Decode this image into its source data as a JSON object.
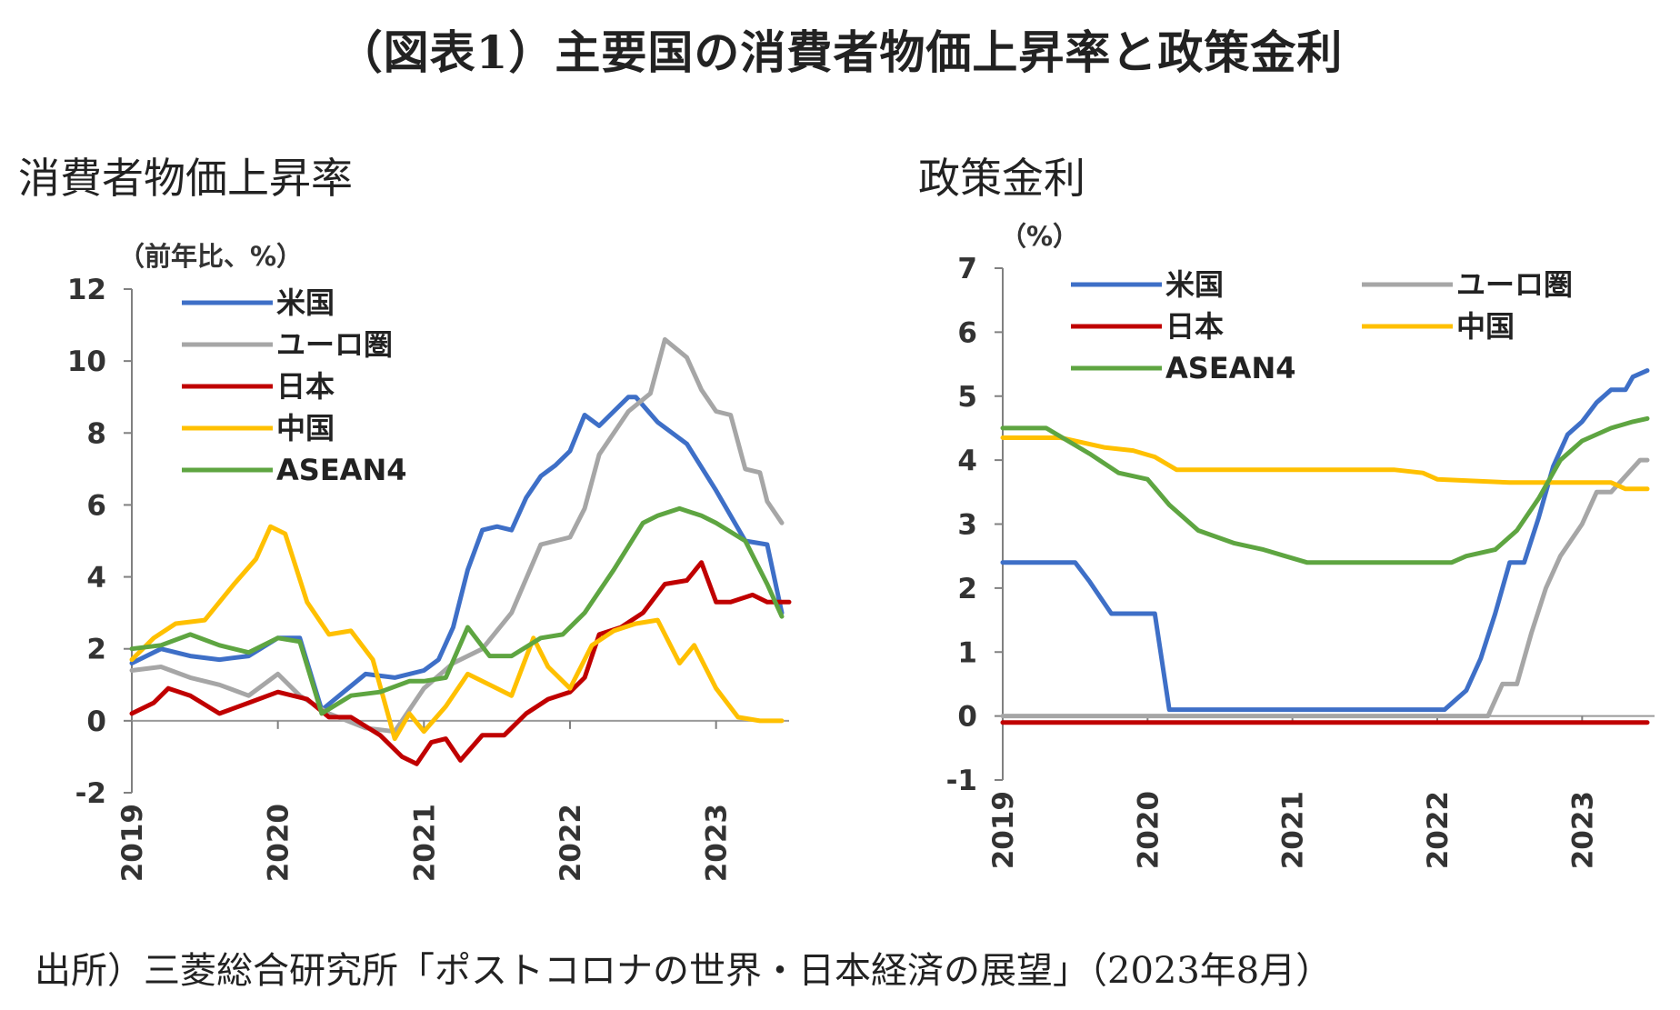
{
  "title": "（図表1）主要国の消費者物価上昇率と政策金利",
  "source": "出所）三菱総合研究所「ポストコロナの世界・日本経済の展望」（2023年8月）",
  "colors": {
    "us": "#3e6fc7",
    "euro": "#a6a6a6",
    "japan": "#c00000",
    "china": "#ffc000",
    "asean": "#5ea541"
  },
  "chart_data": [
    {
      "type": "line",
      "title": "消費者物価上昇率",
      "unit_label": "（前年比、%）",
      "ylim": [
        -2,
        12
      ],
      "yticks": [
        -2,
        0,
        2,
        4,
        6,
        8,
        10,
        12
      ],
      "xlim": [
        2019.0,
        2023.5
      ],
      "xticks": [
        "2019",
        "2020",
        "2021",
        "2022",
        "2023"
      ],
      "grid": false,
      "legend_position": "top-left",
      "series": [
        {
          "name": "米国",
          "key": "us",
          "x": [
            2019.0,
            2019.2,
            2019.4,
            2019.6,
            2019.8,
            2020.0,
            2020.15,
            2020.3,
            2020.45,
            2020.6,
            2020.8,
            2021.0,
            2021.1,
            2021.2,
            2021.3,
            2021.4,
            2021.5,
            2021.6,
            2021.7,
            2021.8,
            2021.9,
            2022.0,
            2022.1,
            2022.2,
            2022.3,
            2022.4,
            2022.45,
            2022.6,
            2022.8,
            2023.0,
            2023.2,
            2023.35,
            2023.45
          ],
          "y": [
            1.6,
            2.0,
            1.8,
            1.7,
            1.8,
            2.3,
            2.3,
            0.3,
            0.8,
            1.3,
            1.2,
            1.4,
            1.7,
            2.6,
            4.2,
            5.3,
            5.4,
            5.3,
            6.2,
            6.8,
            7.1,
            7.5,
            8.5,
            8.2,
            8.6,
            9.0,
            9.0,
            8.3,
            7.7,
            6.4,
            5.0,
            4.9,
            3.0
          ]
        },
        {
          "name": "ユーロ圏",
          "key": "euro",
          "x": [
            2019.0,
            2019.2,
            2019.4,
            2019.6,
            2019.8,
            2020.0,
            2020.15,
            2020.35,
            2020.6,
            2020.8,
            2021.0,
            2021.2,
            2021.4,
            2021.6,
            2021.8,
            2021.9,
            2022.0,
            2022.1,
            2022.2,
            2022.4,
            2022.55,
            2022.65,
            2022.8,
            2022.9,
            2023.0,
            2023.1,
            2023.2,
            2023.3,
            2023.35,
            2023.45
          ],
          "y": [
            1.4,
            1.5,
            1.2,
            1.0,
            0.7,
            1.3,
            0.7,
            0.2,
            -0.2,
            -0.3,
            0.9,
            1.6,
            2.0,
            3.0,
            4.9,
            5.0,
            5.1,
            5.9,
            7.4,
            8.6,
            9.1,
            10.6,
            10.1,
            9.2,
            8.6,
            8.5,
            7.0,
            6.9,
            6.1,
            5.5
          ]
        },
        {
          "name": "日本",
          "key": "japan",
          "x": [
            2019.0,
            2019.15,
            2019.25,
            2019.4,
            2019.6,
            2019.8,
            2020.0,
            2020.2,
            2020.35,
            2020.5,
            2020.7,
            2020.85,
            2020.95,
            2021.05,
            2021.15,
            2021.25,
            2021.4,
            2021.55,
            2021.7,
            2021.85,
            2022.0,
            2022.1,
            2022.2,
            2022.35,
            2022.5,
            2022.65,
            2022.8,
            2022.9,
            2023.0,
            2023.1,
            2023.25,
            2023.35,
            2023.5
          ],
          "y": [
            0.2,
            0.5,
            0.9,
            0.7,
            0.2,
            0.5,
            0.8,
            0.6,
            0.1,
            0.1,
            -0.4,
            -1.0,
            -1.2,
            -0.6,
            -0.5,
            -1.1,
            -0.4,
            -0.4,
            0.2,
            0.6,
            0.8,
            1.2,
            2.4,
            2.6,
            3.0,
            3.8,
            3.9,
            4.4,
            3.3,
            3.3,
            3.5,
            3.3,
            3.3
          ]
        },
        {
          "name": "中国",
          "key": "china",
          "x": [
            2019.0,
            2019.15,
            2019.3,
            2019.5,
            2019.7,
            2019.85,
            2019.95,
            2020.05,
            2020.2,
            2020.35,
            2020.5,
            2020.65,
            2020.8,
            2020.9,
            2021.0,
            2021.15,
            2021.3,
            2021.45,
            2021.6,
            2021.75,
            2021.85,
            2022.0,
            2022.15,
            2022.3,
            2022.45,
            2022.6,
            2022.75,
            2022.85,
            2023.0,
            2023.15,
            2023.3,
            2023.45
          ],
          "y": [
            1.7,
            2.3,
            2.7,
            2.8,
            3.8,
            4.5,
            5.4,
            5.2,
            3.3,
            2.4,
            2.5,
            1.7,
            -0.5,
            0.2,
            -0.3,
            0.4,
            1.3,
            1.0,
            0.7,
            2.3,
            1.5,
            0.9,
            2.1,
            2.5,
            2.7,
            2.8,
            1.6,
            2.1,
            0.9,
            0.1,
            0.0,
            0.0
          ]
        },
        {
          "name": "ASEAN4",
          "key": "asean",
          "x": [
            2019.0,
            2019.2,
            2019.4,
            2019.6,
            2019.8,
            2020.0,
            2020.15,
            2020.3,
            2020.5,
            2020.7,
            2020.9,
            2021.0,
            2021.15,
            2021.3,
            2021.45,
            2021.6,
            2021.8,
            2021.95,
            2022.1,
            2022.3,
            2022.5,
            2022.6,
            2022.75,
            2022.9,
            2023.0,
            2023.2,
            2023.35,
            2023.45
          ],
          "y": [
            2.0,
            2.1,
            2.4,
            2.1,
            1.9,
            2.3,
            2.2,
            0.2,
            0.7,
            0.8,
            1.1,
            1.1,
            1.2,
            2.6,
            1.8,
            1.8,
            2.3,
            2.4,
            3.0,
            4.2,
            5.5,
            5.7,
            5.9,
            5.7,
            5.5,
            5.0,
            3.8,
            2.9
          ]
        }
      ]
    },
    {
      "type": "line",
      "title": "政策金利",
      "unit_label": "（%）",
      "ylim": [
        -1,
        7
      ],
      "yticks": [
        -1,
        0,
        1,
        2,
        3,
        4,
        5,
        6,
        7
      ],
      "xlim": [
        2019.0,
        2023.5
      ],
      "xticks": [
        "2019",
        "2020",
        "2021",
        "2022",
        "2023"
      ],
      "grid": false,
      "legend_position": "top",
      "series": [
        {
          "name": "米国",
          "key": "us",
          "x": [
            2019.0,
            2019.5,
            2019.6,
            2019.75,
            2020.05,
            2020.15,
            2020.2,
            2022.05,
            2022.2,
            2022.3,
            2022.4,
            2022.5,
            2022.6,
            2022.7,
            2022.8,
            2022.9,
            2023.0,
            2023.1,
            2023.2,
            2023.3,
            2023.35,
            2023.45
          ],
          "y": [
            2.4,
            2.4,
            2.1,
            1.6,
            1.6,
            0.1,
            0.1,
            0.1,
            0.4,
            0.9,
            1.6,
            2.4,
            2.4,
            3.1,
            3.9,
            4.4,
            4.6,
            4.9,
            5.1,
            5.1,
            5.3,
            5.4
          ]
        },
        {
          "name": "ユーロ圏",
          "key": "euro",
          "x": [
            2019.0,
            2022.35,
            2022.45,
            2022.55,
            2022.65,
            2022.75,
            2022.85,
            2023.0,
            2023.1,
            2023.2,
            2023.3,
            2023.4,
            2023.45
          ],
          "y": [
            0.0,
            0.0,
            0.5,
            0.5,
            1.3,
            2.0,
            2.5,
            3.0,
            3.5,
            3.5,
            3.75,
            4.0,
            4.0
          ]
        },
        {
          "name": "日本",
          "key": "japan",
          "x": [
            2019.0,
            2023.45
          ],
          "y": [
            -0.1,
            -0.1
          ]
        },
        {
          "name": "中国",
          "key": "china",
          "x": [
            2019.0,
            2019.4,
            2019.7,
            2019.9,
            2020.05,
            2020.2,
            2020.3,
            2021.5,
            2021.7,
            2021.9,
            2022.0,
            2022.5,
            2022.7,
            2023.2,
            2023.3,
            2023.45
          ],
          "y": [
            4.35,
            4.35,
            4.2,
            4.15,
            4.05,
            3.85,
            3.85,
            3.85,
            3.85,
            3.8,
            3.7,
            3.65,
            3.65,
            3.65,
            3.55,
            3.55
          ]
        },
        {
          "name": "ASEAN4",
          "key": "asean",
          "x": [
            2019.0,
            2019.3,
            2019.6,
            2019.8,
            2020.0,
            2020.15,
            2020.35,
            2020.6,
            2020.8,
            2020.95,
            2021.1,
            2021.5,
            2021.9,
            2022.1,
            2022.2,
            2022.4,
            2022.55,
            2022.7,
            2022.85,
            2023.0,
            2023.2,
            2023.35,
            2023.45
          ],
          "y": [
            4.5,
            4.5,
            4.1,
            3.8,
            3.7,
            3.3,
            2.9,
            2.7,
            2.6,
            2.5,
            2.4,
            2.4,
            2.4,
            2.4,
            2.5,
            2.6,
            2.9,
            3.4,
            4.0,
            4.3,
            4.5,
            4.6,
            4.65
          ]
        }
      ]
    }
  ]
}
